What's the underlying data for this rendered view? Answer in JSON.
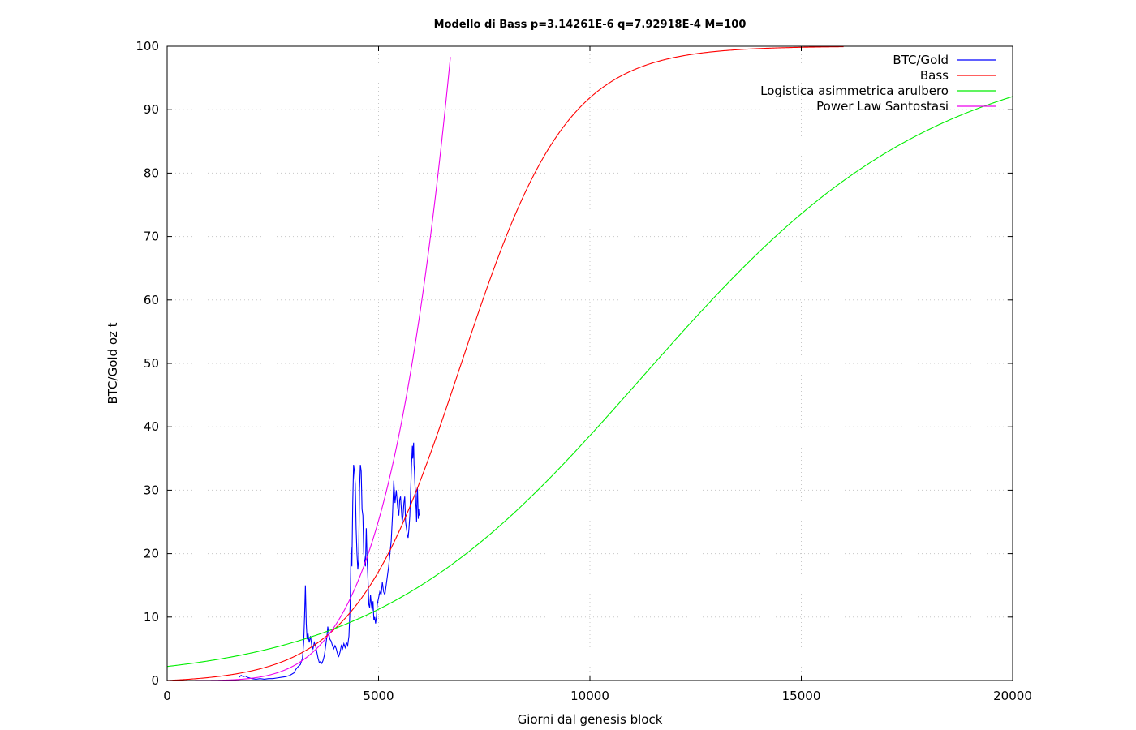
{
  "chart_data": {
    "type": "line",
    "title": "Modello di Bass p=3.14261E-6 q=7.92918E-4 M=100",
    "xlabel": "Giorni dal genesis block",
    "ylabel": "BTC/Gold oz t",
    "xlim": [
      0,
      20000
    ],
    "ylim": [
      0,
      100
    ],
    "xticks": [
      "0",
      "5000",
      "10000",
      "15000",
      "20000"
    ],
    "yticks": [
      "0",
      "10",
      "20",
      "30",
      "40",
      "50",
      "60",
      "70",
      "80",
      "90",
      "100"
    ],
    "grid": true,
    "legend_position": "top-right",
    "series": [
      {
        "name": "BTC/Gold",
        "color": "#0000ff",
        "x": [
          1700,
          1750,
          1800,
          1850,
          1900,
          1950,
          2000,
          2100,
          2200,
          2300,
          2400,
          2500,
          2600,
          2700,
          2800,
          2900,
          3000,
          3050,
          3100,
          3150,
          3200,
          3230,
          3250,
          3270,
          3290,
          3310,
          3330,
          3360,
          3390,
          3420,
          3450,
          3480,
          3510,
          3540,
          3570,
          3600,
          3630,
          3660,
          3690,
          3720,
          3750,
          3780,
          3800,
          3820,
          3850,
          3880,
          3910,
          3940,
          3970,
          4000,
          4030,
          4060,
          4090,
          4120,
          4150,
          4180,
          4210,
          4240,
          4270,
          4300,
          4330,
          4350,
          4370,
          4390,
          4410,
          4430,
          4450,
          4470,
          4490,
          4510,
          4530,
          4550,
          4570,
          4590,
          4610,
          4630,
          4650,
          4670,
          4690,
          4710,
          4730,
          4750,
          4770,
          4790,
          4810,
          4830,
          4850,
          4870,
          4890,
          4910,
          4930,
          4950,
          4970,
          5000,
          5030,
          5060,
          5090,
          5120,
          5150,
          5180,
          5210,
          5240,
          5270,
          5300,
          5330,
          5360,
          5390,
          5420,
          5450,
          5480,
          5500,
          5520,
          5540,
          5560,
          5580,
          5600,
          5620,
          5640,
          5660,
          5680,
          5700,
          5720,
          5740,
          5760,
          5780,
          5800,
          5810,
          5820,
          5830,
          5840,
          5850,
          5860,
          5870,
          5880,
          5890,
          5900,
          5910,
          5920,
          5930,
          5940,
          5950,
          5960
        ],
        "y": [
          0.5,
          0.8,
          0.6,
          0.7,
          0.5,
          0.4,
          0.3,
          0.2,
          0.3,
          0.2,
          0.3,
          0.3,
          0.4,
          0.5,
          0.6,
          0.8,
          1.2,
          1.8,
          2.2,
          2.5,
          3.5,
          6.0,
          10.0,
          15.0,
          9.0,
          6.5,
          7.5,
          6.0,
          7.0,
          5.5,
          5.0,
          6.0,
          5.5,
          4.5,
          3.5,
          2.8,
          3.0,
          2.7,
          3.2,
          4.0,
          5.5,
          7.0,
          8.5,
          7.5,
          6.5,
          6.2,
          5.5,
          5.0,
          5.5,
          5.0,
          4.2,
          3.8,
          4.5,
          5.5,
          5.0,
          5.8,
          5.2,
          6.0,
          5.5,
          7.0,
          12.0,
          21.0,
          18.0,
          28.0,
          34.0,
          33.0,
          31.0,
          24.0,
          20.0,
          17.5,
          19.0,
          30.0,
          34.0,
          33.0,
          27.0,
          26.0,
          20.0,
          19.0,
          18.0,
          24.0,
          19.0,
          16.0,
          12.0,
          11.5,
          13.5,
          12.0,
          11.0,
          12.5,
          9.5,
          10.0,
          9.0,
          10.0,
          12.0,
          13.0,
          14.0,
          13.5,
          15.5,
          14.0,
          13.5,
          15.0,
          16.5,
          18.0,
          20.0,
          22.0,
          26.0,
          31.5,
          28.0,
          30.0,
          27.5,
          26.0,
          28.5,
          29.0,
          27.0,
          25.0,
          26.0,
          28.0,
          29.0,
          25.0,
          24.0,
          23.0,
          22.5,
          24.0,
          26.0,
          30.0,
          34.0,
          37.0,
          35.0,
          36.5,
          37.5,
          34.0,
          33.0,
          31.0,
          30.0,
          28.0,
          27.0,
          25.0,
          29.0,
          30.5,
          28.0,
          25.5,
          27.0,
          26.0
        ]
      },
      {
        "name": "Bass",
        "color": "#ff0000",
        "model": "bass",
        "params": {
          "p": 3.14261e-06,
          "q": 0.000792918,
          "M": 100
        },
        "x_range": [
          0,
          16000
        ]
      },
      {
        "name": "Logistica asimmetrica arulbero",
        "color": "#00ee00",
        "model": "logistic_asym",
        "x_range": [
          0,
          20000
        ]
      },
      {
        "name": "Power Law Santostasi",
        "color": "#ee00ee",
        "model": "power_law",
        "x_range": [
          0,
          6750
        ]
      }
    ]
  }
}
